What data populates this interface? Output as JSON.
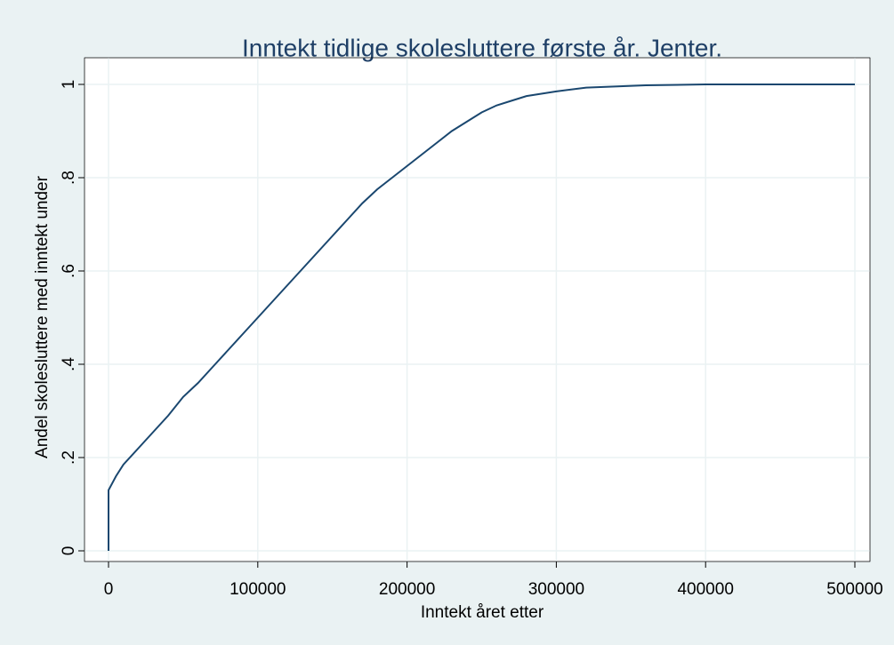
{
  "chart_data": {
    "type": "line",
    "title": "Inntekt tidlige skolesluttere første år. Jenter.",
    "xlabel": "Inntekt året etter",
    "ylabel": "Andel skolesluttere med inntekt under",
    "x": [
      0,
      0,
      5000,
      10000,
      20000,
      30000,
      40000,
      50000,
      60000,
      70000,
      80000,
      90000,
      100000,
      110000,
      120000,
      130000,
      140000,
      150000,
      160000,
      170000,
      180000,
      190000,
      200000,
      210000,
      220000,
      230000,
      240000,
      250000,
      260000,
      270000,
      280000,
      300000,
      320000,
      360000,
      400000,
      500000
    ],
    "values": [
      0,
      0.13,
      0.16,
      0.185,
      0.22,
      0.255,
      0.29,
      0.33,
      0.36,
      0.395,
      0.43,
      0.465,
      0.5,
      0.535,
      0.57,
      0.605,
      0.64,
      0.675,
      0.71,
      0.745,
      0.775,
      0.8,
      0.825,
      0.85,
      0.875,
      0.9,
      0.92,
      0.94,
      0.955,
      0.965,
      0.975,
      0.985,
      0.993,
      0.998,
      1,
      1
    ],
    "color": "#1a476f",
    "xlim": [
      0,
      500000
    ],
    "xticks": [
      0,
      100000,
      200000,
      300000,
      400000,
      500000
    ],
    "ylim": [
      0,
      1
    ],
    "yticks": [
      0,
      {
        "value": 0.2,
        "label": ".2"
      },
      {
        "value": 0.4,
        "label": ".4"
      },
      {
        "value": 0.6,
        "label": ".6"
      },
      {
        "value": 0.8,
        "label": ".8"
      },
      1
    ],
    "grid": true
  }
}
